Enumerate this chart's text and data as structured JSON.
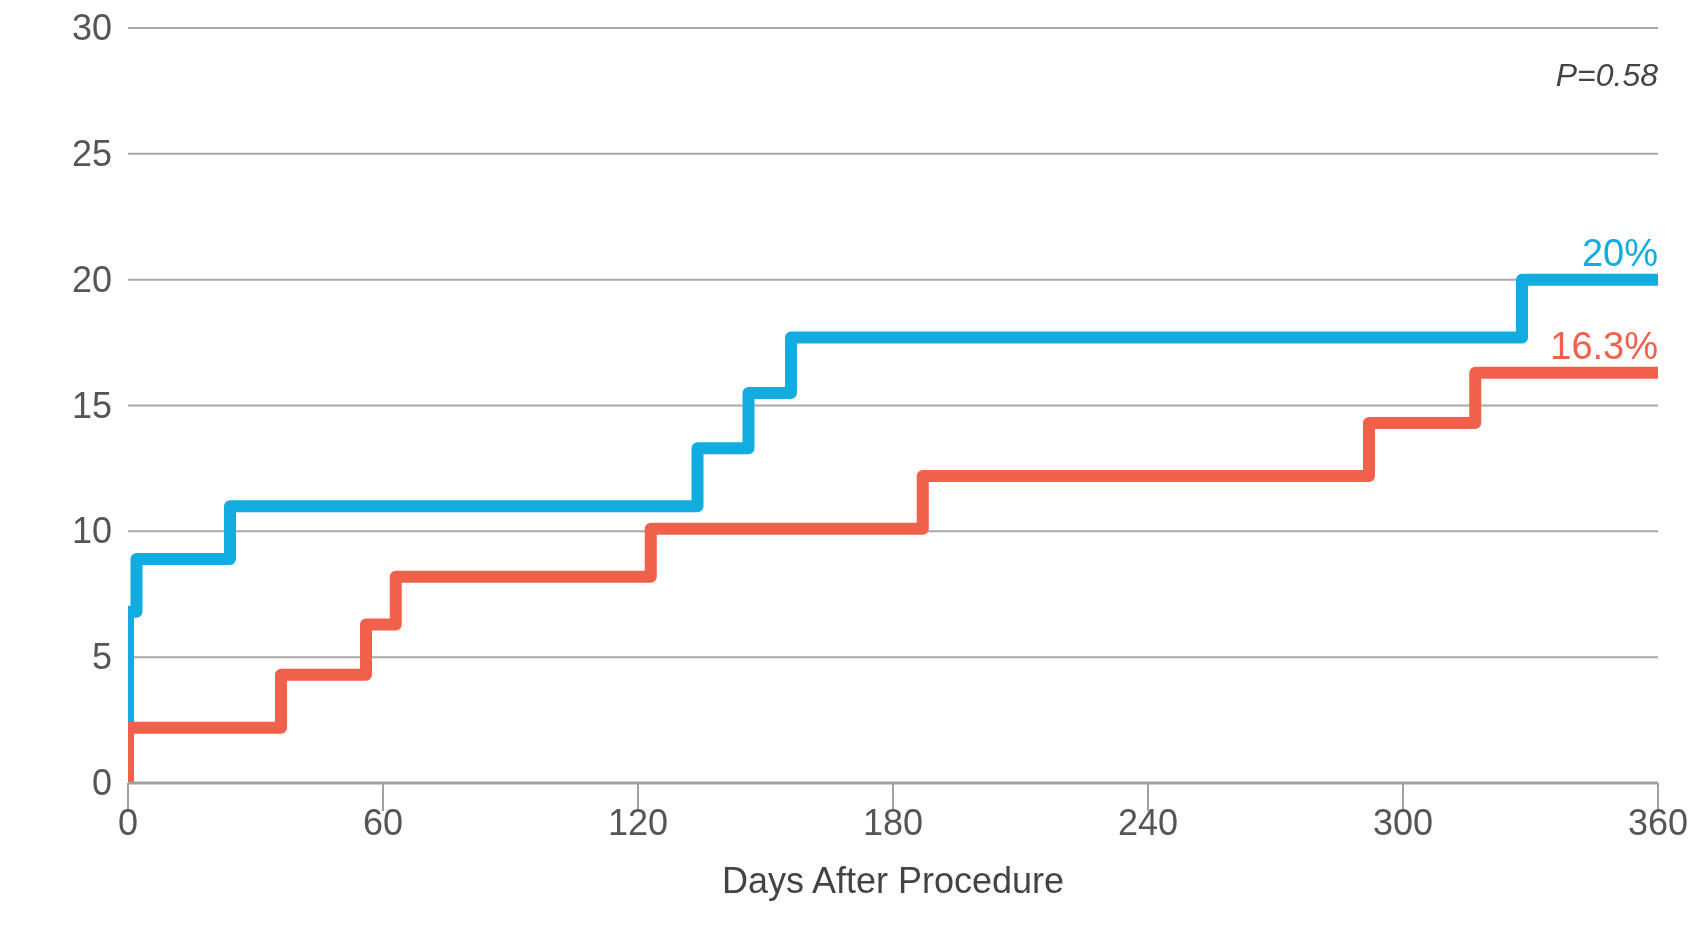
{
  "chart_data": {
    "type": "step",
    "xlabel": "Days After Procedure",
    "xlim": [
      0,
      360
    ],
    "xticks": [
      0,
      60,
      120,
      180,
      240,
      300,
      360
    ],
    "ylim": [
      0,
      30
    ],
    "yticks": [
      0,
      5,
      10,
      15,
      20,
      25,
      30
    ],
    "grid": "y",
    "series": [
      {
        "color": "#12ace0",
        "x": [
          0,
          0,
          2,
          24,
          134,
          146,
          156,
          328,
          360
        ],
        "values": [
          0,
          6.8,
          8.9,
          11,
          13.3,
          15.5,
          17.7,
          20,
          20
        ]
      },
      {
        "color": "#f0604a",
        "x": [
          0,
          0,
          36,
          56,
          63,
          123,
          187,
          292,
          317,
          360
        ],
        "values": [
          0,
          2.2,
          4.3,
          6.3,
          8.2,
          10.1,
          12.2,
          14.3,
          16.3,
          16.3
        ]
      }
    ],
    "annotations": [
      "P=0.58",
      {
        "text": "20%",
        "x": 360,
        "y": 20
      },
      {
        "text": "16.3%",
        "x": 360,
        "y": 16.3
      }
    ]
  }
}
